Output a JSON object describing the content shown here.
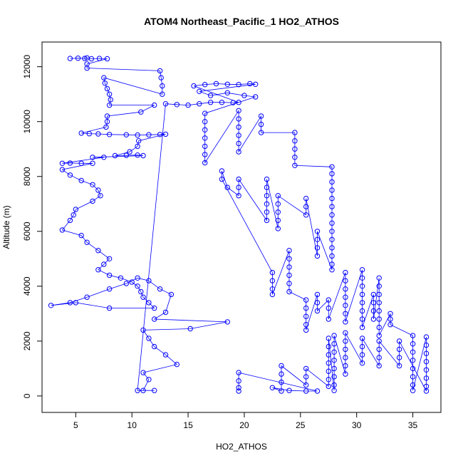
{
  "chart_data": {
    "type": "line",
    "title": "ATOM4 Northeast_Pacific_1 HO2_ATHOS",
    "xlabel": "HO2_ATHOS",
    "ylabel": "Altitude (m)",
    "xlim": [
      2,
      37.5
    ],
    "ylim": [
      -600,
      12900
    ],
    "x_ticks": [
      5,
      10,
      15,
      20,
      25,
      30,
      35
    ],
    "y_ticks": [
      0,
      2000,
      4000,
      6000,
      8000,
      10000,
      12000
    ],
    "grid": false,
    "legend": "none",
    "series_style": {
      "color": "#0000ff",
      "marker": "open-circle",
      "line": true
    },
    "series": [
      {
        "values": [
          [
            4.5,
            12300
          ],
          [
            5.2,
            12310
          ],
          [
            5.8,
            12300
          ],
          [
            6.0,
            12320
          ],
          [
            6.4,
            12290
          ],
          [
            7.1,
            12300
          ],
          [
            7.8,
            12290
          ],
          [
            6.0,
            12100
          ],
          [
            6.0,
            11950
          ],
          [
            12.5,
            11850
          ],
          [
            12.6,
            11600
          ],
          [
            12.7,
            11300
          ],
          [
            12.7,
            11000
          ],
          [
            7.5,
            11600
          ],
          [
            7.6,
            11400
          ],
          [
            7.8,
            11200
          ],
          [
            8.0,
            11000
          ],
          [
            8.1,
            10800
          ],
          [
            8.0,
            10600
          ],
          [
            12.0,
            10600
          ],
          [
            10.8,
            10350
          ],
          [
            7.8,
            10200
          ],
          [
            7.8,
            10000
          ],
          [
            7.7,
            9800
          ],
          [
            5.5,
            9580
          ],
          [
            6.2,
            9560
          ],
          [
            7.0,
            9550
          ],
          [
            8.0,
            9530
          ],
          [
            9.5,
            9520
          ],
          [
            10.5,
            9510
          ],
          [
            11.5,
            9520
          ],
          [
            12.5,
            9530
          ],
          [
            13.0,
            9540
          ],
          [
            10.6,
            9300
          ],
          [
            10.5,
            9100
          ],
          [
            9.8,
            8900
          ],
          [
            8.5,
            8760
          ],
          [
            9.5,
            8770
          ],
          [
            10.5,
            8780
          ],
          [
            11.0,
            8760
          ],
          [
            6.5,
            8700
          ],
          [
            7.5,
            8700
          ],
          [
            3.8,
            8480
          ],
          [
            4.5,
            8490
          ],
          [
            5.5,
            8480
          ],
          [
            6.5,
            8480
          ],
          [
            3.8,
            8250
          ],
          [
            4.5,
            8050
          ],
          [
            5.5,
            7850
          ],
          [
            6.5,
            7700
          ],
          [
            7.0,
            7500
          ],
          [
            7.2,
            7300
          ],
          [
            6.5,
            7100
          ],
          [
            5.0,
            6800
          ],
          [
            4.8,
            6600
          ],
          [
            4.5,
            6400
          ],
          [
            3.8,
            6050
          ],
          [
            5.5,
            5850
          ],
          [
            6.0,
            5600
          ],
          [
            7.0,
            5300
          ],
          [
            8.0,
            5000
          ],
          [
            7.5,
            4800
          ],
          [
            7.0,
            4600
          ],
          [
            8.0,
            4400
          ],
          [
            9.0,
            4300
          ],
          [
            10.0,
            4150
          ],
          [
            10.5,
            4000
          ],
          [
            10.8,
            3800
          ],
          [
            11.0,
            3600
          ],
          [
            11.5,
            3400
          ],
          [
            12.0,
            3200
          ],
          [
            8.0,
            3200
          ],
          [
            5.0,
            3400
          ],
          [
            2.8,
            3300
          ],
          [
            4.5,
            3400
          ],
          [
            6.0,
            3600
          ],
          [
            8.0,
            3900
          ],
          [
            9.5,
            4100
          ],
          [
            10.5,
            4300
          ],
          [
            11.5,
            4200
          ],
          [
            12.5,
            3900
          ],
          [
            13.5,
            3700
          ],
          [
            13.0,
            3050
          ],
          [
            12.0,
            2800
          ],
          [
            18.5,
            2700
          ],
          [
            15.2,
            2450
          ],
          [
            11.0,
            2400
          ],
          [
            11.5,
            2100
          ],
          [
            12.0,
            1800
          ],
          [
            13.0,
            1500
          ],
          [
            14.0,
            1150
          ],
          [
            11.0,
            850
          ],
          [
            11.5,
            600
          ],
          [
            11.0,
            200
          ],
          [
            12.0,
            200
          ],
          [
            10.5,
            200
          ],
          [
            13.0,
            10650
          ],
          [
            14.0,
            10620
          ],
          [
            15.0,
            10600
          ],
          [
            16.0,
            10650
          ],
          [
            17.0,
            10700
          ],
          [
            18.0,
            10700
          ],
          [
            19.0,
            10690
          ],
          [
            19.5,
            10700
          ],
          [
            15.5,
            11300
          ],
          [
            16.5,
            11350
          ],
          [
            17.5,
            11380
          ],
          [
            18.5,
            11360
          ],
          [
            19.5,
            11350
          ],
          [
            20.5,
            11380
          ],
          [
            21.0,
            11360
          ],
          [
            16.0,
            11100
          ],
          [
            17.0,
            10950
          ],
          [
            18.5,
            11050
          ],
          [
            20.0,
            10950
          ],
          [
            21.0,
            10900
          ],
          [
            16.5,
            10300
          ],
          [
            16.5,
            10000
          ],
          [
            16.5,
            9700
          ],
          [
            16.5,
            9400
          ],
          [
            16.5,
            9100
          ],
          [
            16.5,
            8800
          ],
          [
            16.5,
            8500
          ],
          [
            19.5,
            10400
          ],
          [
            19.5,
            10100
          ],
          [
            19.5,
            9800
          ],
          [
            19.5,
            9500
          ],
          [
            19.5,
            9200
          ],
          [
            19.5,
            8900
          ],
          [
            21.5,
            10200
          ],
          [
            21.5,
            9900
          ],
          [
            21.5,
            9600
          ],
          [
            24.5,
            9600
          ],
          [
            24.5,
            9300
          ],
          [
            24.5,
            9000
          ],
          [
            24.5,
            8700
          ],
          [
            24.5,
            8400
          ],
          [
            27.8,
            8350
          ],
          [
            27.8,
            8100
          ],
          [
            27.8,
            7800
          ],
          [
            27.8,
            7500
          ],
          [
            27.8,
            7200
          ],
          [
            27.8,
            6900
          ],
          [
            27.8,
            6600
          ],
          [
            27.8,
            6300
          ],
          [
            27.8,
            6000
          ],
          [
            27.8,
            5700
          ],
          [
            27.8,
            5400
          ],
          [
            27.8,
            5100
          ],
          [
            27.8,
            4800
          ],
          [
            27.8,
            4600
          ],
          [
            26.5,
            6000
          ],
          [
            26.5,
            5700
          ],
          [
            26.5,
            5400
          ],
          [
            26.5,
            5100
          ],
          [
            25.5,
            7200
          ],
          [
            25.5,
            6900
          ],
          [
            25.5,
            6600
          ],
          [
            23.0,
            7300
          ],
          [
            23.0,
            7000
          ],
          [
            23.0,
            6700
          ],
          [
            23.0,
            6400
          ],
          [
            23.0,
            6100
          ],
          [
            22.0,
            7900
          ],
          [
            22.0,
            7600
          ],
          [
            22.0,
            7300
          ],
          [
            22.0,
            7000
          ],
          [
            22.0,
            6700
          ],
          [
            22.0,
            6400
          ],
          [
            19.5,
            7900
          ],
          [
            19.5,
            7600
          ],
          [
            19.5,
            7300
          ],
          [
            18.5,
            7600
          ],
          [
            18.0,
            8200
          ],
          [
            18.0,
            7900
          ],
          [
            22.5,
            4500
          ],
          [
            22.5,
            4200
          ],
          [
            22.5,
            3900
          ],
          [
            22.5,
            3700
          ],
          [
            24.0,
            5300
          ],
          [
            24.0,
            5000
          ],
          [
            24.0,
            4700
          ],
          [
            24.0,
            4400
          ],
          [
            24.0,
            4100
          ],
          [
            24.0,
            3800
          ],
          [
            25.5,
            3500
          ],
          [
            25.5,
            3200
          ],
          [
            25.5,
            2900
          ],
          [
            25.5,
            2600
          ],
          [
            25.5,
            2400
          ],
          [
            26.5,
            3700
          ],
          [
            26.5,
            3400
          ],
          [
            26.5,
            3100
          ],
          [
            27.5,
            3500
          ],
          [
            27.5,
            3200
          ],
          [
            27.5,
            2800
          ],
          [
            29.0,
            4500
          ],
          [
            29.0,
            4200
          ],
          [
            29.0,
            3900
          ],
          [
            29.0,
            3600
          ],
          [
            29.0,
            3300
          ],
          [
            29.0,
            3000
          ],
          [
            29.0,
            2700
          ],
          [
            30.5,
            4600
          ],
          [
            30.5,
            4300
          ],
          [
            30.5,
            4000
          ],
          [
            30.5,
            3700
          ],
          [
            30.5,
            3400
          ],
          [
            30.5,
            3100
          ],
          [
            30.5,
            2800
          ],
          [
            30.5,
            2500
          ],
          [
            31.5,
            3700
          ],
          [
            31.5,
            3400
          ],
          [
            31.5,
            3100
          ],
          [
            31.5,
            2800
          ],
          [
            32.0,
            4300
          ],
          [
            32.0,
            4000
          ],
          [
            32.0,
            3700
          ],
          [
            32.0,
            3400
          ],
          [
            32.0,
            3100
          ],
          [
            32.0,
            2800
          ],
          [
            32.0,
            2500
          ],
          [
            32.0,
            2200
          ],
          [
            33.0,
            3000
          ],
          [
            33.0,
            2800
          ],
          [
            33.0,
            2600
          ],
          [
            35.0,
            2200
          ],
          [
            35.0,
            1900
          ],
          [
            35.0,
            1600
          ],
          [
            35.0,
            1300
          ],
          [
            35.0,
            1000
          ],
          [
            35.0,
            700
          ],
          [
            35.0,
            400
          ],
          [
            35.0,
            200
          ],
          [
            36.2,
            2150
          ],
          [
            36.2,
            1850
          ],
          [
            36.2,
            1550
          ],
          [
            36.2,
            1250
          ],
          [
            36.2,
            950
          ],
          [
            36.2,
            650
          ],
          [
            36.2,
            350
          ],
          [
            36.2,
            180
          ],
          [
            33.8,
            2000
          ],
          [
            33.8,
            1700
          ],
          [
            33.8,
            1400
          ],
          [
            33.8,
            1100
          ],
          [
            32.0,
            2000
          ],
          [
            32.0,
            1700
          ],
          [
            32.0,
            1400
          ],
          [
            32.0,
            1100
          ],
          [
            30.5,
            2100
          ],
          [
            30.5,
            1800
          ],
          [
            30.5,
            1500
          ],
          [
            30.5,
            1200
          ],
          [
            29.0,
            2300
          ],
          [
            29.0,
            2000
          ],
          [
            29.0,
            1700
          ],
          [
            29.0,
            1400
          ],
          [
            29.0,
            1100
          ],
          [
            29.0,
            800
          ],
          [
            28.0,
            2200
          ],
          [
            28.0,
            1900
          ],
          [
            28.0,
            1600
          ],
          [
            28.0,
            1300
          ],
          [
            28.0,
            1000
          ],
          [
            28.0,
            700
          ],
          [
            28.0,
            400
          ],
          [
            28.0,
            200
          ],
          [
            27.5,
            2100
          ],
          [
            27.5,
            1800
          ],
          [
            27.5,
            1500
          ],
          [
            27.5,
            1200
          ],
          [
            27.5,
            900
          ],
          [
            27.5,
            600
          ],
          [
            27.5,
            350
          ],
          [
            25.5,
            1000
          ],
          [
            25.5,
            700
          ],
          [
            25.5,
            400
          ],
          [
            23.3,
            1100
          ],
          [
            23.3,
            800
          ],
          [
            23.3,
            500
          ],
          [
            23.3,
            180
          ],
          [
            22.5,
            300
          ],
          [
            24.0,
            200
          ],
          [
            25.5,
            180
          ],
          [
            26.5,
            180
          ],
          [
            19.5,
            850
          ],
          [
            19.5,
            550
          ],
          [
            19.5,
            300
          ],
          [
            19.5,
            180
          ]
        ]
      }
    ]
  }
}
